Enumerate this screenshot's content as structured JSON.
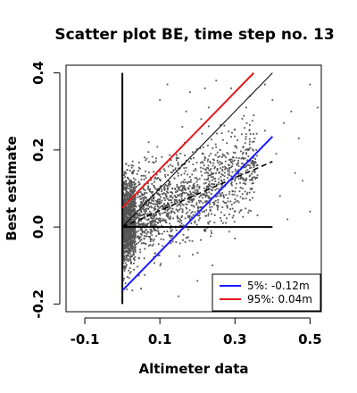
{
  "chart_data": {
    "type": "scatter",
    "title": "Scatter plot BE, time step no. 13",
    "xlabel": "Altimeter data",
    "ylabel": "Best estimate",
    "xlim": [
      -0.15,
      0.53
    ],
    "ylim": [
      -0.22,
      0.42
    ],
    "x_ticks": [
      -0.1,
      0.1,
      0.3,
      0.5
    ],
    "x_tick_labels": [
      "-0.1",
      "0.1",
      "0.3",
      "0.5"
    ],
    "y_ticks": [
      -0.2,
      0.0,
      0.2,
      0.4
    ],
    "y_tick_labels": [
      "-0.2",
      "0.0",
      "0.2",
      "0.4"
    ],
    "point_color": "#555555",
    "lines": [
      {
        "name": "reference-1to1",
        "style": "solid",
        "color": "#000000",
        "x": [
          0.0,
          0.4
        ],
        "y": [
          0.0,
          0.4
        ]
      },
      {
        "name": "zero-horizontal",
        "style": "solid",
        "color": "#000000",
        "x": [
          0.0,
          0.4
        ],
        "y": [
          0.0,
          0.0
        ]
      },
      {
        "name": "zero-vertical",
        "style": "solid",
        "color": "#000000",
        "x": [
          0.0,
          0.0
        ],
        "y": [
          -0.2,
          0.4
        ]
      },
      {
        "name": "regression",
        "style": "dashed",
        "color": "#000000",
        "x": [
          0.0,
          0.4
        ],
        "y": [
          0.0,
          0.17
        ]
      },
      {
        "name": "5%",
        "style": "solid",
        "color": "#1a1aff",
        "x": [
          0.0,
          0.4
        ],
        "y": [
          -0.165,
          0.235
        ]
      },
      {
        "name": "95%",
        "style": "solid",
        "color": "#e31a1c",
        "x": [
          0.0,
          0.35
        ],
        "y": [
          0.05,
          0.4
        ]
      }
    ],
    "legend": {
      "position": "bottom-right",
      "entries": [
        {
          "label": "5%: -0.12m",
          "color": "#1a1aff"
        },
        {
          "label": "95%:  0.04m",
          "color": "#e31a1c"
        }
      ]
    },
    "outliers": [
      [
        0.05,
        0.03
      ],
      [
        0.07,
        0.22
      ],
      [
        0.1,
        0.33
      ],
      [
        0.12,
        0.37
      ],
      [
        0.18,
        0.35
      ],
      [
        0.22,
        0.36
      ],
      [
        0.25,
        0.38
      ],
      [
        0.3,
        0.21
      ],
      [
        0.32,
        0.18
      ],
      [
        0.35,
        0.29
      ],
      [
        0.38,
        0.25
      ],
      [
        0.41,
        0.19
      ],
      [
        0.43,
        0.27
      ],
      [
        0.45,
        0.3
      ],
      [
        0.47,
        0.23
      ],
      [
        0.48,
        0.12
      ],
      [
        0.5,
        0.04
      ],
      [
        0.52,
        0.31
      ],
      [
        0.5,
        0.37
      ],
      [
        0.44,
        0.02
      ],
      [
        0.36,
        0.03
      ],
      [
        0.33,
        0.31
      ],
      [
        0.29,
        0.36
      ],
      [
        0.4,
        0.33
      ],
      [
        0.46,
        0.14
      ],
      [
        0.26,
        0.2
      ],
      [
        0.28,
        0.05
      ],
      [
        0.42,
        0.08
      ],
      [
        0.3,
        -0.03
      ],
      [
        0.24,
        -0.1
      ],
      [
        0.2,
        -0.14
      ],
      [
        0.15,
        -0.18
      ],
      [
        0.34,
        0.34
      ],
      [
        0.38,
        0.37
      ],
      [
        0.21,
        0.28
      ],
      [
        0.17,
        0.3
      ],
      [
        0.23,
        0.31
      ],
      [
        0.16,
        0.26
      ],
      [
        0.05,
        -0.16
      ],
      [
        0.02,
        -0.12
      ],
      [
        0.3,
        0.12
      ],
      [
        0.35,
        0.16
      ]
    ]
  }
}
